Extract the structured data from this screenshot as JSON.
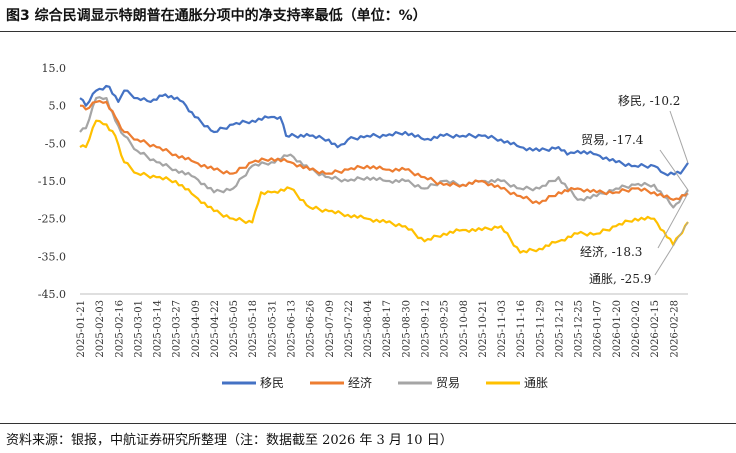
{
  "title": "图3  综合民调显示特朗普在通胀分项中的净支持率最低（单位：%）",
  "source": "资料来源：银报，中航证券研究所整理（注：数据截至 2026 年 3 月 10 日）",
  "colors": {
    "移民": "#4472C4",
    "经济": "#ED7D31",
    "贸易": "#A5A5A5",
    "通胀": "#FFC000"
  },
  "chart_data": {
    "type": "line",
    "ylim": [
      -45,
      15
    ],
    "yticks": [
      "15.0",
      "5.0",
      "-5.0",
      "-15.0",
      "-25.0",
      "-35.0",
      "-45.0"
    ],
    "xticks": [
      "2025-01-21",
      "2025-02-03",
      "2025-02-16",
      "2025-03-01",
      "2025-03-14",
      "2025-03-27",
      "2025-04-09",
      "2025-04-22",
      "2025-05-05",
      "2025-05-18",
      "2025-05-31",
      "2025-06-13",
      "2025-06-26",
      "2025-07-09",
      "2025-07-22",
      "2025-08-04",
      "2025-08-17",
      "2025-08-30",
      "2025-09-12",
      "2025-09-25",
      "2025-10-08",
      "2025-10-21",
      "2025-11-03",
      "2025-11-16",
      "2025-11-29",
      "2025-12-12",
      "2025-12-25",
      "2026-01-07",
      "2026-01-20",
      "2026-02-02",
      "2026-02-15",
      "2026-02-28"
    ],
    "grid": false,
    "legend_position": "bottom",
    "series": [
      {
        "name": "移民",
        "label": "移民, -10.2",
        "points": [
          [
            "2025-01-21",
            7
          ],
          [
            "2025-01-25",
            5
          ],
          [
            "2025-02-01",
            9
          ],
          [
            "2025-02-10",
            10
          ],
          [
            "2025-02-16",
            6
          ],
          [
            "2025-02-20",
            9
          ],
          [
            "2025-03-01",
            7
          ],
          [
            "2025-03-10",
            6
          ],
          [
            "2025-03-20",
            8
          ],
          [
            "2025-04-01",
            6
          ],
          [
            "2025-04-09",
            2
          ],
          [
            "2025-04-22",
            -2
          ],
          [
            "2025-05-05",
            0
          ],
          [
            "2025-05-18",
            1
          ],
          [
            "2025-05-31",
            2
          ],
          [
            "2025-06-06",
            2
          ],
          [
            "2025-06-10",
            -3
          ],
          [
            "2025-06-26",
            -3
          ],
          [
            "2025-07-09",
            -4
          ],
          [
            "2025-07-15",
            -6
          ],
          [
            "2025-07-22",
            -4
          ],
          [
            "2025-08-04",
            -3
          ],
          [
            "2025-08-17",
            -3
          ],
          [
            "2025-08-30",
            -2
          ],
          [
            "2025-09-12",
            -4
          ],
          [
            "2025-09-25",
            -3
          ],
          [
            "2025-10-08",
            -3
          ],
          [
            "2025-10-21",
            -3
          ],
          [
            "2025-11-03",
            -4
          ],
          [
            "2025-11-16",
            -6
          ],
          [
            "2025-11-29",
            -7
          ],
          [
            "2025-12-12",
            -6
          ],
          [
            "2025-12-18",
            -8
          ],
          [
            "2025-12-25",
            -7
          ],
          [
            "2026-01-07",
            -8
          ],
          [
            "2026-01-20",
            -10
          ],
          [
            "2026-02-02",
            -11
          ],
          [
            "2026-02-15",
            -11
          ],
          [
            "2026-02-22",
            -13
          ],
          [
            "2026-03-05",
            -13
          ],
          [
            "2026-03-10",
            -10.2
          ]
        ]
      },
      {
        "name": "经济",
        "label": "经济, -18.3",
        "points": [
          [
            "2025-01-21",
            5
          ],
          [
            "2025-01-25",
            4
          ],
          [
            "2025-02-01",
            6
          ],
          [
            "2025-02-08",
            6
          ],
          [
            "2025-02-14",
            2
          ],
          [
            "2025-02-20",
            -2
          ],
          [
            "2025-03-01",
            -4
          ],
          [
            "2025-03-14",
            -6
          ],
          [
            "2025-03-27",
            -8
          ],
          [
            "2025-04-09",
            -10
          ],
          [
            "2025-04-22",
            -12
          ],
          [
            "2025-05-05",
            -13
          ],
          [
            "2025-05-18",
            -10
          ],
          [
            "2025-05-31",
            -9
          ],
          [
            "2025-06-13",
            -10
          ],
          [
            "2025-06-26",
            -12
          ],
          [
            "2025-07-09",
            -13
          ],
          [
            "2025-07-22",
            -12
          ],
          [
            "2025-08-04",
            -11
          ],
          [
            "2025-08-17",
            -12
          ],
          [
            "2025-08-30",
            -12
          ],
          [
            "2025-09-12",
            -14
          ],
          [
            "2025-09-25",
            -16
          ],
          [
            "2025-10-08",
            -16
          ],
          [
            "2025-10-21",
            -15
          ],
          [
            "2025-11-03",
            -17
          ],
          [
            "2025-11-16",
            -19
          ],
          [
            "2025-11-29",
            -21
          ],
          [
            "2025-12-12",
            -18
          ],
          [
            "2025-12-25",
            -17
          ],
          [
            "2026-01-07",
            -18
          ],
          [
            "2026-01-20",
            -18
          ],
          [
            "2026-02-02",
            -17
          ],
          [
            "2026-02-15",
            -18
          ],
          [
            "2026-02-28",
            -20
          ],
          [
            "2026-03-10",
            -18.3
          ]
        ]
      },
      {
        "name": "贸易",
        "label": "贸易, -17.4",
        "points": [
          [
            "2025-01-21",
            -2
          ],
          [
            "2025-01-25",
            -1
          ],
          [
            "2025-02-01",
            7
          ],
          [
            "2025-02-08",
            7
          ],
          [
            "2025-02-14",
            1
          ],
          [
            "2025-02-20",
            -3
          ],
          [
            "2025-03-01",
            -7
          ],
          [
            "2025-03-14",
            -10
          ],
          [
            "2025-03-27",
            -12
          ],
          [
            "2025-04-09",
            -14
          ],
          [
            "2025-04-22",
            -18
          ],
          [
            "2025-05-05",
            -17
          ],
          [
            "2025-05-18",
            -11
          ],
          [
            "2025-05-31",
            -10
          ],
          [
            "2025-06-13",
            -8
          ],
          [
            "2025-06-26",
            -12
          ],
          [
            "2025-07-09",
            -14
          ],
          [
            "2025-07-22",
            -15
          ],
          [
            "2025-08-04",
            -14
          ],
          [
            "2025-08-17",
            -15
          ],
          [
            "2025-08-30",
            -15
          ],
          [
            "2025-09-12",
            -17
          ],
          [
            "2025-09-25",
            -15
          ],
          [
            "2025-10-08",
            -16
          ],
          [
            "2025-10-21",
            -15
          ],
          [
            "2025-11-03",
            -15
          ],
          [
            "2025-11-16",
            -17
          ],
          [
            "2025-11-29",
            -17
          ],
          [
            "2025-12-12",
            -14
          ],
          [
            "2025-12-25",
            -20
          ],
          [
            "2026-01-07",
            -19
          ],
          [
            "2026-01-20",
            -17
          ],
          [
            "2026-02-02",
            -16
          ],
          [
            "2026-02-15",
            -16
          ],
          [
            "2026-02-28",
            -22
          ],
          [
            "2026-03-10",
            -17.4
          ]
        ]
      },
      {
        "name": "通胀",
        "label": "通胀, -25.9",
        "points": [
          [
            "2025-01-21",
            -6
          ],
          [
            "2025-01-25",
            -6
          ],
          [
            "2025-02-01",
            1
          ],
          [
            "2025-02-08",
            0
          ],
          [
            "2025-02-14",
            -3
          ],
          [
            "2025-02-20",
            -10
          ],
          [
            "2025-03-01",
            -13
          ],
          [
            "2025-03-14",
            -14
          ],
          [
            "2025-03-27",
            -15
          ],
          [
            "2025-04-09",
            -19
          ],
          [
            "2025-04-22",
            -23
          ],
          [
            "2025-05-05",
            -25
          ],
          [
            "2025-05-18",
            -26
          ],
          [
            "2025-05-24",
            -18
          ],
          [
            "2025-05-31",
            -18
          ],
          [
            "2025-06-13",
            -17
          ],
          [
            "2025-06-26",
            -22
          ],
          [
            "2025-07-09",
            -23
          ],
          [
            "2025-07-22",
            -24
          ],
          [
            "2025-08-04",
            -25
          ],
          [
            "2025-08-17",
            -26
          ],
          [
            "2025-08-30",
            -27
          ],
          [
            "2025-09-12",
            -31
          ],
          [
            "2025-09-25",
            -29
          ],
          [
            "2025-10-08",
            -28
          ],
          [
            "2025-10-21",
            -28
          ],
          [
            "2025-11-03",
            -27
          ],
          [
            "2025-11-16",
            -34
          ],
          [
            "2025-11-29",
            -33
          ],
          [
            "2025-12-12",
            -31
          ],
          [
            "2025-12-25",
            -29
          ],
          [
            "2026-01-07",
            -29
          ],
          [
            "2026-01-20",
            -27
          ],
          [
            "2026-02-02",
            -25
          ],
          [
            "2026-02-15",
            -25
          ],
          [
            "2026-02-28",
            -32
          ],
          [
            "2026-03-10",
            -25.9
          ]
        ]
      }
    ]
  }
}
